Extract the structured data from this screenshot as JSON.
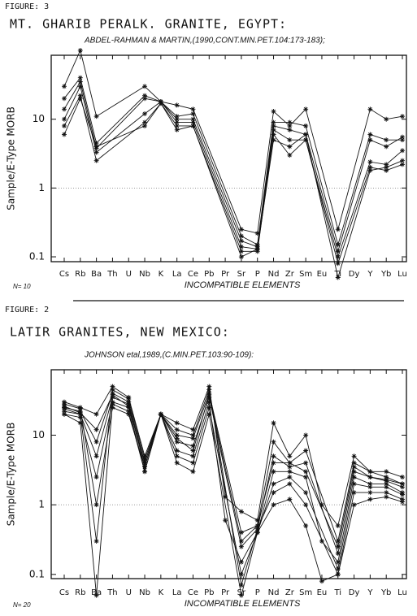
{
  "chart_data": [
    {
      "type": "line",
      "figure": "FIGURE: 3",
      "title": "MT. GHARIB PERALK. GRANITE, EGYPT:",
      "subtitle": "ABDEL-RAHMAN & MARTIN,(1990,CONT.MIN.PET.104:173-183);",
      "x_label": "INCOMPATIBLE ELEMENTS",
      "y_label": "Sample/E-Type MORB",
      "note": "N= 10",
      "log_scale": true,
      "span_gaps": true,
      "reference_line": 1,
      "ylim": [
        0.085,
        85
      ],
      "yticks": [
        0.1,
        1,
        10
      ],
      "categories": [
        "Cs",
        "Rb",
        "Ba",
        "Th",
        "U",
        "Nb",
        "K",
        "La",
        "Ce",
        "Pb",
        "Pr",
        "Sr",
        "P",
        "Nd",
        "Zr",
        "Sm",
        "Eu",
        "Ti",
        "Dy",
        "Y",
        "Yb",
        "Lu"
      ],
      "series": [
        {
          "color": "#111",
          "values": [
            30,
            100,
            11,
            null,
            null,
            30,
            18,
            16,
            14,
            null,
            null,
            0.25,
            0.22,
            13,
            8,
            14,
            null,
            0.25,
            null,
            14,
            10,
            11
          ]
        },
        {
          "color": "#111",
          "values": [
            20,
            40,
            4.5,
            null,
            null,
            22,
            18,
            11,
            12,
            null,
            null,
            0.2,
            0.15,
            9,
            9,
            8,
            null,
            0.15,
            null,
            6,
            5,
            5
          ]
        },
        {
          "color": "#111",
          "values": [
            14,
            35,
            3.8,
            null,
            null,
            20,
            18,
            10,
            10,
            null,
            null,
            0.17,
            0.14,
            8,
            7,
            6,
            null,
            0.12,
            null,
            5,
            4,
            5.5
          ]
        },
        {
          "color": "#111",
          "values": [
            10,
            30,
            3.3,
            null,
            null,
            12,
            18,
            9,
            9,
            null,
            null,
            0.14,
            0.13,
            7,
            5,
            5,
            null,
            0.1,
            null,
            2.4,
            2.2,
            3.5
          ]
        },
        {
          "color": "#111",
          "values": [
            8,
            22,
            2.5,
            null,
            null,
            9,
            17,
            8,
            8,
            null,
            null,
            0.12,
            0.12,
            6,
            3,
            5,
            null,
            0.08,
            null,
            2,
            1.8,
            2.2
          ]
        },
        {
          "color": "#111",
          "values": [
            6,
            20,
            4,
            null,
            null,
            8,
            17,
            7,
            8,
            null,
            null,
            0.1,
            0.13,
            5,
            4,
            6,
            null,
            0.05,
            null,
            1.8,
            2,
            2.5
          ]
        }
      ]
    },
    {
      "type": "line",
      "figure": "FIGURE: 2",
      "title": "LATIR GRANITES, NEW MEXICO:",
      "subtitle": "JOHNSON etal,1989,(C.MIN.PET.103:90-109):",
      "x_label": "INCOMPATIBLE ELEMENTS",
      "y_label": "Sample/E-Type MORB",
      "note": "N= 20",
      "log_scale": true,
      "span_gaps": true,
      "reference_line": 1,
      "ylim": [
        0.087,
        87
      ],
      "yticks": [
        0.1,
        1,
        10
      ],
      "categories": [
        "Cs",
        "Rb",
        "Ba",
        "Th",
        "U",
        "Nb",
        "K",
        "La",
        "Ce",
        "Pb",
        "Pr",
        "Sr",
        "P",
        "Nd",
        "Zr",
        "Sm",
        "Eu",
        "Ti",
        "Dy",
        "Y",
        "Yb",
        "Lu"
      ],
      "series": [
        {
          "color": "#111",
          "values": [
            30,
            25,
            20,
            50,
            35,
            5,
            20,
            15,
            12,
            50,
            1.3,
            0.8,
            0.6,
            15,
            5,
            10,
            1,
            0.5,
            5,
            3,
            3,
            2.5
          ]
        },
        {
          "color": "#111",
          "values": [
            25,
            22,
            8,
            40,
            30,
            4,
            20,
            10,
            9,
            40,
            null,
            0.4,
            0.5,
            8,
            4,
            6,
            null,
            0.3,
            4,
            3,
            2.5,
            2
          ]
        },
        {
          "color": "#111",
          "values": [
            22,
            20,
            5,
            35,
            28,
            3.5,
            20,
            8,
            7,
            35,
            null,
            0.25,
            0.45,
            5,
            3.5,
            4,
            null,
            0.2,
            3,
            2.5,
            2.2,
            1.8
          ]
        },
        {
          "color": "#111",
          "values": [
            20,
            18,
            2.5,
            30,
            25,
            3,
            20,
            6,
            5,
            30,
            0.6,
            0.15,
            0.4,
            3,
            3,
            2.5,
            0.3,
            0.15,
            2.5,
            2,
            2,
            1.5
          ]
        },
        {
          "color": "#111",
          "values": [
            28,
            24,
            1,
            25,
            20,
            3.5,
            20,
            5,
            4,
            25,
            null,
            0.1,
            0.4,
            2,
            2.5,
            1.5,
            null,
            0.12,
            2,
            1.8,
            1.8,
            1.4
          ]
        },
        {
          "color": "#111",
          "values": [
            24,
            20,
            0.3,
            45,
            33,
            4.5,
            20,
            12,
            10,
            45,
            null,
            0.07,
            0.45,
            1.5,
            2,
            1,
            null,
            0.1,
            1.5,
            1.5,
            1.5,
            1.2
          ]
        },
        {
          "color": "#111",
          "values": [
            20,
            15,
            0.05,
            28,
            22,
            3,
            20,
            4,
            3,
            20,
            null,
            0.05,
            0.4,
            1,
            1.2,
            0.5,
            0.08,
            0.1,
            1,
            1.2,
            1.3,
            1.1
          ]
        },
        {
          "color": "#111",
          "values": [
            26,
            21,
            12,
            38,
            26,
            4,
            20,
            9,
            6,
            38,
            null,
            0.3,
            0.5,
            4,
            4,
            3,
            null,
            0.25,
            3.5,
            2.5,
            2.3,
            2
          ]
        }
      ]
    }
  ]
}
